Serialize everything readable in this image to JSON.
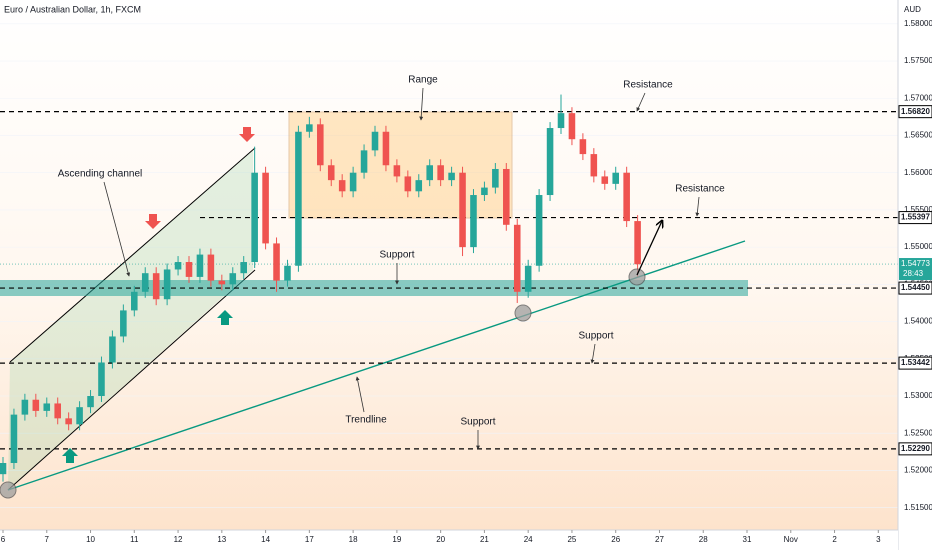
{
  "chart_data": {
    "type": "candlestick",
    "title": "Euro / Australian Dollar, 1h, FXCM",
    "y_axis_label": "AUD",
    "up_color": "#26a69a",
    "down_color": "#ef5350",
    "x": [
      0,
      0.25,
      0.5,
      0.75,
      1,
      1.25,
      1.5,
      1.75,
      2,
      2.25,
      2.5,
      2.75,
      3,
      3.25,
      3.5,
      3.75,
      4,
      4.25,
      4.5,
      4.75,
      5,
      5.25,
      5.5,
      5.75,
      6,
      6.25,
      6.5,
      6.75,
      7,
      7.25,
      7.5,
      7.75,
      8,
      8.25,
      8.5,
      8.75,
      9,
      9.25,
      9.5,
      9.75,
      10,
      10.25,
      10.5,
      10.75,
      11,
      11.25,
      11.5,
      11.75,
      12,
      12.25,
      12.5,
      12.75,
      13,
      13.25,
      13.5,
      13.75,
      14,
      14.25,
      14.5
    ],
    "open": [
      1.5195,
      1.521,
      1.5275,
      1.5295,
      1.528,
      1.529,
      1.527,
      1.5262,
      1.5285,
      1.53,
      1.5345,
      1.538,
      1.5415,
      1.544,
      1.5465,
      1.543,
      1.547,
      1.548,
      1.546,
      1.549,
      1.5455,
      1.545,
      1.5465,
      1.548,
      1.56,
      1.5505,
      1.5455,
      1.5475,
      1.5655,
      1.5665,
      1.561,
      1.559,
      1.5575,
      1.56,
      1.563,
      1.5655,
      1.561,
      1.5595,
      1.5575,
      1.559,
      1.561,
      1.559,
      1.56,
      1.55,
      1.557,
      1.558,
      1.5605,
      1.553,
      1.544,
      1.5475,
      1.557,
      1.566,
      1.568,
      1.5645,
      1.5625,
      1.5595,
      1.5585,
      1.56,
      1.5535
    ],
    "high": [
      1.5218,
      1.5283,
      1.5303,
      1.5303,
      1.5298,
      1.5298,
      1.5278,
      1.5293,
      1.5308,
      1.5353,
      1.5388,
      1.5423,
      1.5448,
      1.5473,
      1.5473,
      1.5478,
      1.5488,
      1.5488,
      1.5498,
      1.5498,
      1.5463,
      1.5473,
      1.5488,
      1.5635,
      1.5608,
      1.5513,
      1.5483,
      1.5663,
      1.5675,
      1.5673,
      1.5618,
      1.5598,
      1.5608,
      1.5638,
      1.5663,
      1.5663,
      1.5618,
      1.5603,
      1.5598,
      1.5618,
      1.5618,
      1.5608,
      1.5608,
      1.5578,
      1.5588,
      1.5613,
      1.5613,
      1.5538,
      1.5483,
      1.5578,
      1.5668,
      1.5705,
      1.5688,
      1.5653,
      1.5633,
      1.5603,
      1.5608,
      1.5608,
      1.5543
    ],
    "low": [
      1.5185,
      1.5202,
      1.5267,
      1.5272,
      1.5272,
      1.5262,
      1.5254,
      1.5254,
      1.5277,
      1.5292,
      1.5337,
      1.5372,
      1.5407,
      1.5432,
      1.5422,
      1.5422,
      1.5462,
      1.5452,
      1.5452,
      1.5447,
      1.5442,
      1.5442,
      1.5457,
      1.5472,
      1.5497,
      1.544,
      1.5447,
      1.5467,
      1.5647,
      1.5602,
      1.5582,
      1.5567,
      1.5567,
      1.5592,
      1.5622,
      1.5602,
      1.5587,
      1.5567,
      1.5567,
      1.5582,
      1.5582,
      1.5582,
      1.5488,
      1.5492,
      1.5562,
      1.5572,
      1.5522,
      1.5425,
      1.5432,
      1.5467,
      1.5562,
      1.5652,
      1.5637,
      1.5617,
      1.5587,
      1.5577,
      1.5577,
      1.5527,
      1.546
    ],
    "close": [
      1.521,
      1.5275,
      1.5295,
      1.528,
      1.529,
      1.527,
      1.5262,
      1.5285,
      1.53,
      1.5345,
      1.538,
      1.5415,
      1.544,
      1.5465,
      1.543,
      1.547,
      1.548,
      1.546,
      1.549,
      1.5455,
      1.545,
      1.5465,
      1.548,
      1.56,
      1.5505,
      1.5455,
      1.5475,
      1.5655,
      1.5665,
      1.561,
      1.559,
      1.5575,
      1.56,
      1.563,
      1.5655,
      1.561,
      1.5595,
      1.5575,
      1.559,
      1.561,
      1.559,
      1.56,
      1.55,
      1.557,
      1.558,
      1.5605,
      1.553,
      1.544,
      1.5475,
      1.557,
      1.566,
      1.568,
      1.5645,
      1.5625,
      1.5595,
      1.5585,
      1.56,
      1.5535,
      1.5477
    ],
    "xlim": [
      0,
      20.45
    ],
    "xticks": [
      {
        "value": 0,
        "label": "6"
      },
      {
        "value": 1,
        "label": "7"
      },
      {
        "value": 2,
        "label": "10"
      },
      {
        "value": 3,
        "label": "11"
      },
      {
        "value": 4,
        "label": "12"
      },
      {
        "value": 5,
        "label": "13"
      },
      {
        "value": 6,
        "label": "14"
      },
      {
        "value": 7,
        "label": "17"
      },
      {
        "value": 8,
        "label": "18"
      },
      {
        "value": 9,
        "label": "19"
      },
      {
        "value": 10,
        "label": "20"
      },
      {
        "value": 11,
        "label": "21"
      },
      {
        "value": 12,
        "label": "24"
      },
      {
        "value": 13,
        "label": "25"
      },
      {
        "value": 14,
        "label": "26"
      },
      {
        "value": 15,
        "label": "27"
      },
      {
        "value": 16,
        "label": "28"
      },
      {
        "value": 17,
        "label": "31"
      },
      {
        "value": 18,
        "label": "Nov"
      },
      {
        "value": 19,
        "label": "2"
      },
      {
        "value": 20,
        "label": "3"
      }
    ],
    "ylim": [
      1.512,
      1.5832
    ],
    "yticks": [
      {
        "value": 1.515,
        "label": "1.51500"
      },
      {
        "value": 1.52,
        "label": "1.52000"
      },
      {
        "value": 1.525,
        "label": "1.52500"
      },
      {
        "value": 1.53,
        "label": "1.53000"
      },
      {
        "value": 1.535,
        "label": "1.53500"
      },
      {
        "value": 1.54,
        "label": "1.54000"
      },
      {
        "value": 1.545,
        "label": "1.54500"
      },
      {
        "value": 1.55,
        "label": "1.55000"
      },
      {
        "value": 1.555,
        "label": "1.55500"
      },
      {
        "value": 1.56,
        "label": "1.56000"
      },
      {
        "value": 1.565,
        "label": "1.56500"
      },
      {
        "value": 1.57,
        "label": "1.57000"
      },
      {
        "value": 1.575,
        "label": "1.57500"
      },
      {
        "value": 1.58,
        "label": "1.58000"
      }
    ],
    "levels": [
      {
        "value": 1.5682,
        "label": "1.56820"
      },
      {
        "value": 1.55397,
        "label": "1.55397"
      },
      {
        "value": 1.5445,
        "label": "1.54450"
      },
      {
        "value": 1.53442,
        "label": "1.53442"
      },
      {
        "value": 1.5229,
        "label": "1.52290"
      }
    ],
    "last_price": {
      "value": 1.54773,
      "label": "1.54773"
    },
    "countdown": "28:43",
    "annotations": [
      "Range",
      "Resistance",
      "Ascending channel",
      "Resistance",
      "Support",
      "Support",
      "Trendline",
      "Support"
    ]
  }
}
